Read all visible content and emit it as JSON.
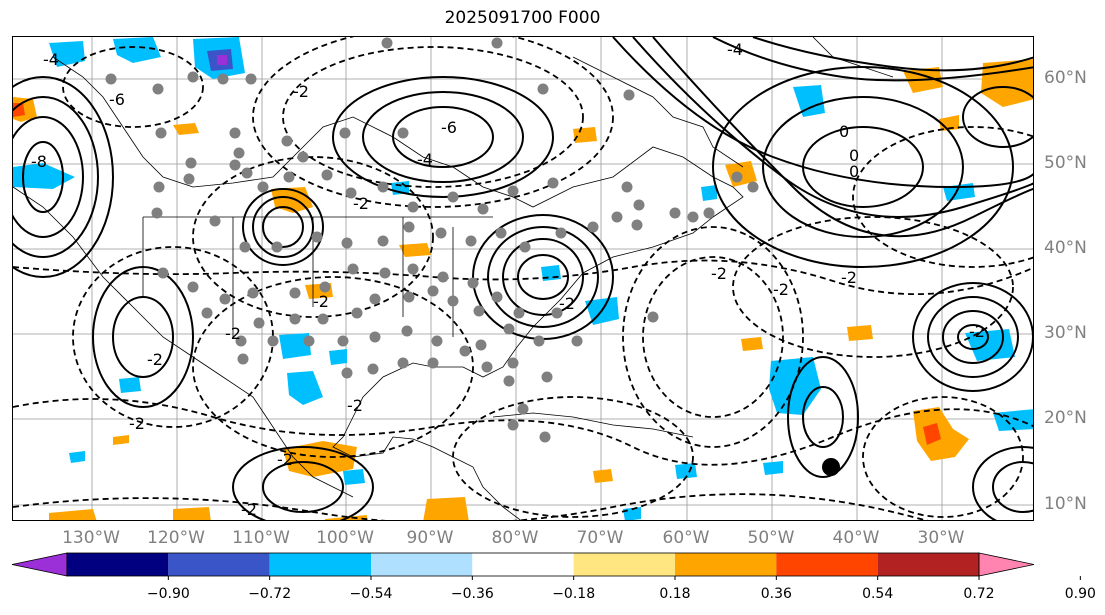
{
  "title": "2025091700 F000",
  "longitude_labels": [
    "130°W",
    "120°W",
    "110°W",
    "100°W",
    "90°W",
    "80°W",
    "70°W",
    "60°W",
    "50°W",
    "40°W",
    "30°W"
  ],
  "latitude_labels": [
    "60°N",
    "50°N",
    "40°N",
    "30°N",
    "20°N",
    "10°N"
  ],
  "colorbar": {
    "tick_labels": [
      "−0.90",
      "−0.72",
      "−0.54",
      "−0.36",
      "−0.18",
      "0.18",
      "0.36",
      "0.54",
      "0.72",
      "0.90"
    ],
    "colors": [
      "#9b30d9",
      "#000080",
      "#3a55c8",
      "#00bfff",
      "#b0e0ff",
      "#ffffff",
      "#ffe680",
      "#ffa500",
      "#ff4500",
      "#b22222",
      "#ff85b0"
    ]
  },
  "contour_labels": [
    "-4",
    "-6",
    "-8",
    "-2",
    "-6",
    "-4",
    "-2",
    "-2",
    "-2",
    "-2",
    "-2",
    "-2",
    "-2",
    "-2",
    "-2",
    "-2",
    "-2",
    "-2",
    "-2",
    "0",
    "0",
    "0",
    "-4"
  ],
  "map_colors": {
    "positive_fill": "#ffa500",
    "negative_fill": "#00bfff",
    "grid": "#999999",
    "stations": "#808080"
  }
}
